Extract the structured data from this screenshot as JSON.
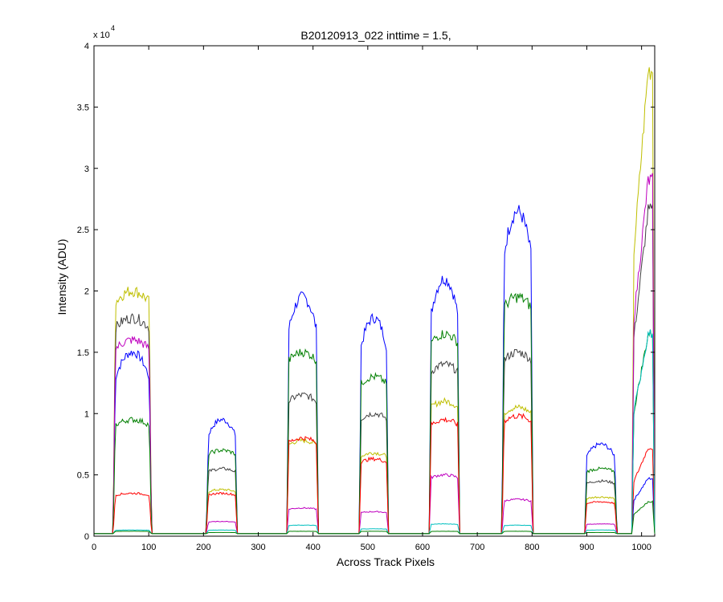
{
  "chart_data": {
    "type": "line",
    "title": "B20120913_022 inttime = 1.5,",
    "xlabel": "Across Track Pixels",
    "ylabel": "Intensity (ADU)",
    "y_exponent_label": "x 10",
    "y_exponent_power": "4",
    "xlim": [
      0,
      1024
    ],
    "ylim": [
      0,
      40000
    ],
    "xticks": [
      0,
      100,
      200,
      300,
      400,
      500,
      600,
      700,
      800,
      900,
      1000
    ],
    "yticks": [
      0,
      5000,
      10000,
      15000,
      20000,
      25000,
      30000,
      35000,
      40000
    ],
    "xtick_labels": [
      "0",
      "100",
      "200",
      "300",
      "400",
      "500",
      "600",
      "700",
      "800",
      "900",
      "1000"
    ],
    "ytick_labels": [
      "0",
      "0.5",
      "1",
      "1.5",
      "2",
      "2.5",
      "3",
      "3.5",
      "4"
    ],
    "grid": false,
    "legend": "none",
    "slits": [
      {
        "x0": 35,
        "x1": 105
      },
      {
        "x0": 205,
        "x1": 262
      },
      {
        "x0": 352,
        "x1": 410
      },
      {
        "x0": 484,
        "x1": 538
      },
      {
        "x0": 612,
        "x1": 668
      },
      {
        "x0": 745,
        "x1": 802
      },
      {
        "x0": 896,
        "x1": 955
      },
      {
        "x0": 982,
        "x1": 1024
      }
    ],
    "baseline": 200,
    "series": [
      {
        "color": "#0000ff",
        "peaks": [
          15000,
          9500,
          19500,
          17800,
          21000,
          26500,
          7500,
          4700
        ],
        "shape": "dome"
      },
      {
        "color": "#bfbf00",
        "peaks": [
          20000,
          3800,
          7800,
          6800,
          11000,
          10500,
          3200,
          38000
        ],
        "shape": "flat"
      },
      {
        "color": "#404040",
        "peaks": [
          17800,
          5500,
          11500,
          10000,
          14000,
          15000,
          4500,
          26500
        ],
        "shape": "flat"
      },
      {
        "color": "#bf00bf",
        "peaks": [
          16000,
          1200,
          2300,
          2000,
          5000,
          3000,
          1000,
          29000
        ],
        "shape": "flat"
      },
      {
        "color": "#007f00",
        "peaks": [
          9500,
          7000,
          15000,
          13000,
          16500,
          19500,
          5500,
          16500
        ],
        "shape": "flat"
      },
      {
        "color": "#ff0000",
        "peaks": [
          3500,
          3500,
          8000,
          6300,
          9500,
          9800,
          2800,
          7200
        ],
        "shape": "flat"
      },
      {
        "color": "#00bfbf",
        "peaks": [
          500,
          500,
          900,
          600,
          1000,
          900,
          500,
          16500
        ],
        "shape": "flat"
      },
      {
        "color": "#007f00",
        "peaks": [
          400,
          300,
          400,
          400,
          400,
          400,
          300,
          2800
        ],
        "shape": "flat"
      }
    ]
  }
}
